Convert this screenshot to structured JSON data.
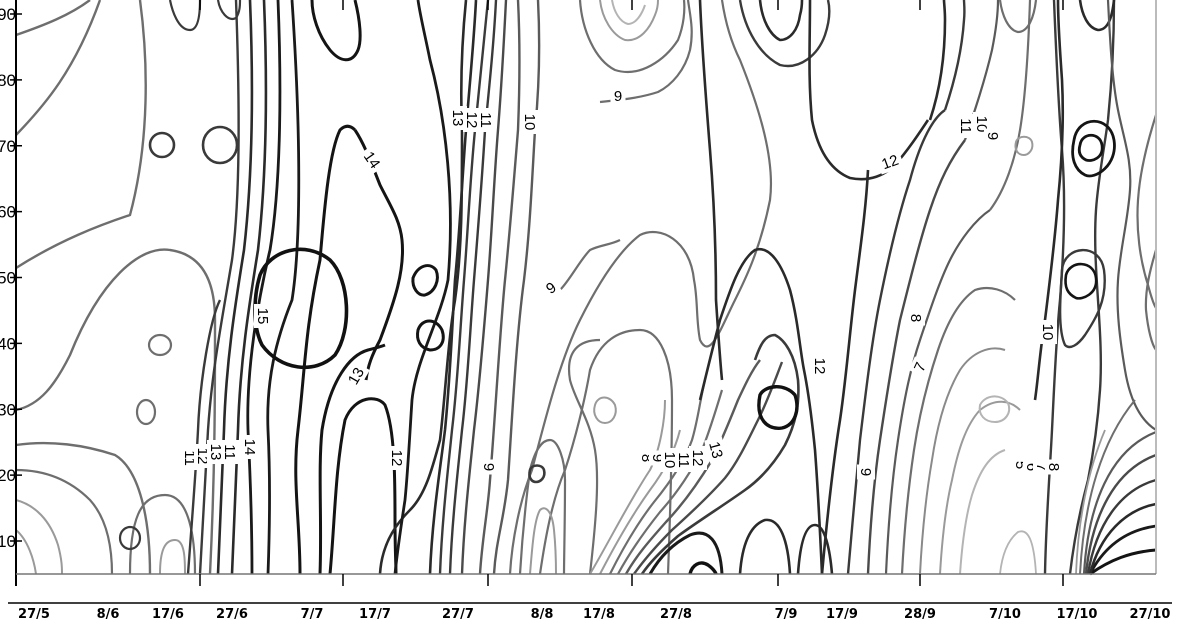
{
  "chart_data": {
    "type": "contour",
    "xlabel": "",
    "ylabel": "",
    "ylim": [
      5,
      90
    ],
    "y_ticks": [
      10,
      20,
      30,
      40,
      50,
      60,
      70,
      80,
      90
    ],
    "x_ticks": [
      "27/5",
      "8/6",
      "17/6",
      "27/6",
      "7/7",
      "17/7",
      "27/7",
      "8/8",
      "17/8",
      "27/8",
      "7/9",
      "17/9",
      "28/9",
      "7/10",
      "17/10",
      "27/10"
    ],
    "contour_levels": [
      5,
      6,
      7,
      8,
      9,
      10,
      11,
      12,
      13,
      14,
      15
    ],
    "line_colors": {
      "low": "#b4b4b4",
      "mid": "#6e6e6e",
      "high": "#141414"
    },
    "contour_labels": [
      {
        "text": "11",
        "x": "17/6",
        "y": 21
      },
      {
        "text": "12",
        "x": "17/6",
        "y": 21
      },
      {
        "text": "13",
        "x": "27/6",
        "y": 23
      },
      {
        "text": "11",
        "x": "27/6",
        "y": 23
      },
      {
        "text": "14",
        "x": "27/6",
        "y": 23
      },
      {
        "text": "15",
        "x": "7/7",
        "y": 44
      },
      {
        "text": "14",
        "x": "17/7",
        "y": 65
      },
      {
        "text": "13",
        "x": "17/7",
        "y": 34
      },
      {
        "text": "12",
        "x": "17/7",
        "y": 22
      },
      {
        "text": "13",
        "x": "27/7",
        "y": 72
      },
      {
        "text": "12",
        "x": "27/7",
        "y": 72
      },
      {
        "text": "11",
        "x": "27/7",
        "y": 72
      },
      {
        "text": "10",
        "x": "8/8",
        "y": 72
      },
      {
        "text": "9",
        "x": "8/8",
        "y": 48
      },
      {
        "text": "9",
        "x": "8/8",
        "y": 21
      },
      {
        "text": "9",
        "x": "17/8",
        "y": 81
      },
      {
        "text": "8",
        "x": "17/8",
        "y": 21
      },
      {
        "text": "9",
        "x": "17/8",
        "y": 21
      },
      {
        "text": "10",
        "x": "27/8",
        "y": 21
      },
      {
        "text": "11",
        "x": "27/8",
        "y": 21
      },
      {
        "text": "12",
        "x": "27/8",
        "y": 21
      },
      {
        "text": "13",
        "x": "27/8",
        "y": 21
      },
      {
        "text": "12",
        "x": "17/9",
        "y": 35
      },
      {
        "text": "9",
        "x": "17/9",
        "y": 20
      },
      {
        "text": "12",
        "x": "28/9",
        "y": 65
      },
      {
        "text": "8",
        "x": "28/9",
        "y": 42
      },
      {
        "text": "7",
        "x": "28/9",
        "y": 35
      },
      {
        "text": "11",
        "x": "7/10",
        "y": 72
      },
      {
        "text": "10",
        "x": "7/10",
        "y": 72
      },
      {
        "text": "9",
        "x": "7/10",
        "y": 70
      },
      {
        "text": "5",
        "x": "7/10",
        "y": 21
      },
      {
        "text": "6",
        "x": "7/10",
        "y": 21
      },
      {
        "text": "7",
        "x": "7/10",
        "y": 21
      },
      {
        "text": "8",
        "x": "7/10",
        "y": 21
      },
      {
        "text": "10",
        "x": "17/10",
        "y": 40
      }
    ]
  }
}
